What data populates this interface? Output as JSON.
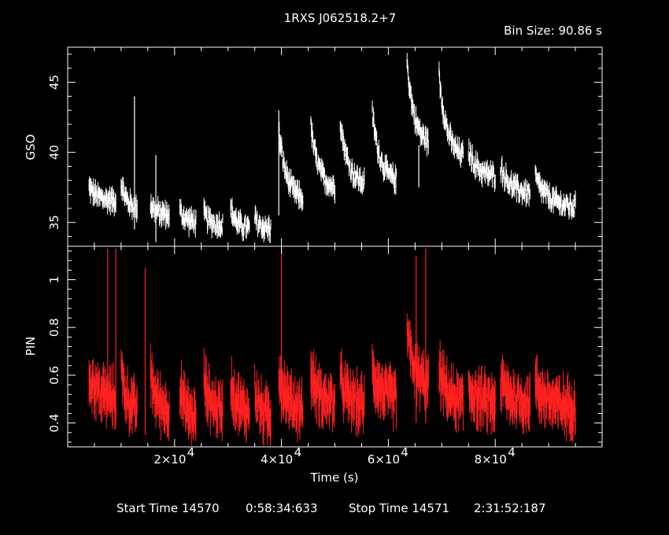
{
  "header": {
    "title": "1RXS J062518.2+7",
    "bin_size": "Bin Size: 90.86 s"
  },
  "footer": {
    "start_label": "Start Time 14570",
    "start_time": "0:58:34:633",
    "stop_label": "Stop Time 14571",
    "stop_time": "2:31:52:187"
  },
  "colors": {
    "gso": "#ffffff",
    "pin": "#ff2020",
    "frame": "#ffffff",
    "background": "#000000"
  },
  "chart_data": [
    {
      "type": "scatter",
      "panel": "top",
      "ylabel": "GSO",
      "xlim": [
        0,
        100000
      ],
      "ylim": [
        33.3,
        47.5
      ],
      "yticks": [
        35,
        40,
        45
      ],
      "series": [
        {
          "segments": [
            {
              "x0": 4000,
              "x1": 9000,
              "y0": 37.5,
              "y1": 36.5
            },
            {
              "x0": 10000,
              "x1": 13000,
              "y0": 37.8,
              "y1": 36.0
            },
            {
              "x0": 15500,
              "x1": 19000,
              "y0": 36.3,
              "y1": 35.5
            },
            {
              "x0": 21000,
              "x1": 24000,
              "y0": 35.8,
              "y1": 35.0
            },
            {
              "x0": 25500,
              "x1": 29000,
              "y0": 35.6,
              "y1": 34.8
            },
            {
              "x0": 30500,
              "x1": 34000,
              "y0": 36.0,
              "y1": 34.5
            },
            {
              "x0": 35000,
              "x1": 38000,
              "y0": 35.3,
              "y1": 34.5
            },
            {
              "x0": 39500,
              "x1": 44000,
              "y0": 41.5,
              "y1": 36.5
            },
            {
              "x0": 45500,
              "x1": 50000,
              "y0": 41.8,
              "y1": 37.3
            },
            {
              "x0": 51000,
              "x1": 55500,
              "y0": 42.3,
              "y1": 37.6
            },
            {
              "x0": 57000,
              "x1": 61500,
              "y0": 42.8,
              "y1": 37.8
            },
            {
              "x0": 63500,
              "x1": 67500,
              "y0": 46.5,
              "y1": 40.5
            },
            {
              "x0": 69500,
              "x1": 74000,
              "y0": 45.5,
              "y1": 39.5
            },
            {
              "x0": 75000,
              "x1": 80000,
              "y0": 40.2,
              "y1": 38.2
            },
            {
              "x0": 81000,
              "x1": 86500,
              "y0": 39.0,
              "y1": 37.0
            },
            {
              "x0": 87500,
              "x1": 95000,
              "y0": 38.2,
              "y1": 36.0
            }
          ],
          "spikes": [
            {
              "x": 12500,
              "y": 44.0,
              "low": 34.5
            },
            {
              "x": 16500,
              "y": 39.8,
              "low": 33.6
            },
            {
              "x": 39500,
              "y": 43.0,
              "low": 35.5
            },
            {
              "x": 65700,
              "y": 40.5,
              "low": 37.5
            }
          ]
        }
      ]
    },
    {
      "type": "scatter",
      "panel": "bottom",
      "ylabel": "PIN",
      "xlabel": "Time (s)",
      "xlim": [
        0,
        100000
      ],
      "xticks": [
        20000,
        40000,
        60000,
        80000
      ],
      "xticklabels": [
        "2×10",
        "4×10",
        "6×10",
        "8×10"
      ],
      "xtick_exp": "4",
      "ylim": [
        0.3,
        1.14
      ],
      "yticks": [
        0.4,
        0.6,
        0.8,
        1
      ],
      "yticklabels": [
        "0.4",
        "0.6",
        "0.8",
        "1"
      ],
      "series": [
        {
          "segments": [
            {
              "x0": 4000,
              "x1": 9000,
              "y0": 0.6,
              "y1": 0.5
            },
            {
              "x0": 10000,
              "x1": 13000,
              "y0": 0.62,
              "y1": 0.45
            },
            {
              "x0": 15500,
              "x1": 19000,
              "y0": 0.6,
              "y1": 0.45
            },
            {
              "x0": 21000,
              "x1": 24000,
              "y0": 0.55,
              "y1": 0.42
            },
            {
              "x0": 25500,
              "x1": 29000,
              "y0": 0.58,
              "y1": 0.45
            },
            {
              "x0": 30500,
              "x1": 34000,
              "y0": 0.58,
              "y1": 0.44
            },
            {
              "x0": 35000,
              "x1": 38000,
              "y0": 0.55,
              "y1": 0.42
            },
            {
              "x0": 39500,
              "x1": 44000,
              "y0": 0.62,
              "y1": 0.45
            },
            {
              "x0": 45500,
              "x1": 50000,
              "y0": 0.6,
              "y1": 0.48
            },
            {
              "x0": 51000,
              "x1": 55500,
              "y0": 0.58,
              "y1": 0.47
            },
            {
              "x0": 57000,
              "x1": 61500,
              "y0": 0.62,
              "y1": 0.5
            },
            {
              "x0": 63500,
              "x1": 67500,
              "y0": 0.78,
              "y1": 0.55
            },
            {
              "x0": 69500,
              "x1": 74000,
              "y0": 0.62,
              "y1": 0.48
            },
            {
              "x0": 75000,
              "x1": 80000,
              "y0": 0.55,
              "y1": 0.48
            },
            {
              "x0": 81000,
              "x1": 86500,
              "y0": 0.57,
              "y1": 0.48
            },
            {
              "x0": 87500,
              "x1": 95000,
              "y0": 0.56,
              "y1": 0.46
            }
          ],
          "spikes": [
            {
              "x": 7500,
              "y": 1.13,
              "low": 0.45
            },
            {
              "x": 9000,
              "y": 1.13,
              "low": 0.4
            },
            {
              "x": 14500,
              "y": 1.05,
              "low": 0.35
            },
            {
              "x": 40000,
              "y": 1.13,
              "low": 0.4
            },
            {
              "x": 65200,
              "y": 1.1,
              "low": 0.4
            },
            {
              "x": 67000,
              "y": 1.13,
              "low": 0.4
            }
          ]
        }
      ]
    }
  ]
}
